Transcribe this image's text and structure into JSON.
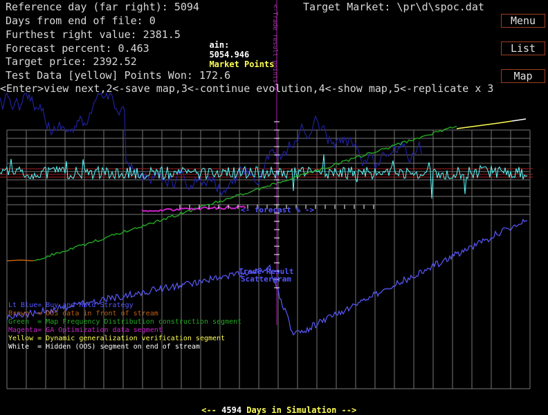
{
  "info": {
    "reference_day": "Reference day (far right): 5094",
    "days_from_end": "Days from end of file: 0",
    "furthest_right": "Furthest right value: 2381.5",
    "forecast_percent": "Forecast percent: 0.463",
    "target_price": "Target price: 2392.52",
    "test_points": "Test Data [yellow] Points Won: 172.6"
  },
  "market": "Target Market: \\pr\\d\\spoc.dat",
  "gain": {
    "label": "ain:",
    "value": "5054.946",
    "units": "Market Points"
  },
  "commands": "<Enter>view next,2<-save map,3<-continue evolution,4<-show map,5<-replicate x 3",
  "buttons": {
    "menu": "Menu",
    "list": "List",
    "map": "Map"
  },
  "labels": {
    "forecast": "<- forecast % ->",
    "trade_result_1": "Trade Result",
    "trade_result_2": "Scattergram",
    "vertical_axis": "<-Trade result points->"
  },
  "legend": [
    {
      "text": "Lt Blue= Buy and Hold Strategy",
      "color": "#5555ff"
    },
    {
      "text": "Brown  = OOS data in front of stream",
      "color": "#c06010"
    },
    {
      "text": "Green  = Map Frequency Distribution construction segment",
      "color": "#22aa22"
    },
    {
      "text": "Magenta= GA Optimization data segment",
      "color": "#cc22cc"
    },
    {
      "text": "Yellow = Dynamic generalization verification segment",
      "color": "#ffff55"
    },
    {
      "text": "White  = Hidden (OOS) segment on end of stream",
      "color": "#ffffff"
    }
  ],
  "footer": {
    "left": "<-- ",
    "days": "4594",
    "right": " Days in Simulation -->"
  }
}
